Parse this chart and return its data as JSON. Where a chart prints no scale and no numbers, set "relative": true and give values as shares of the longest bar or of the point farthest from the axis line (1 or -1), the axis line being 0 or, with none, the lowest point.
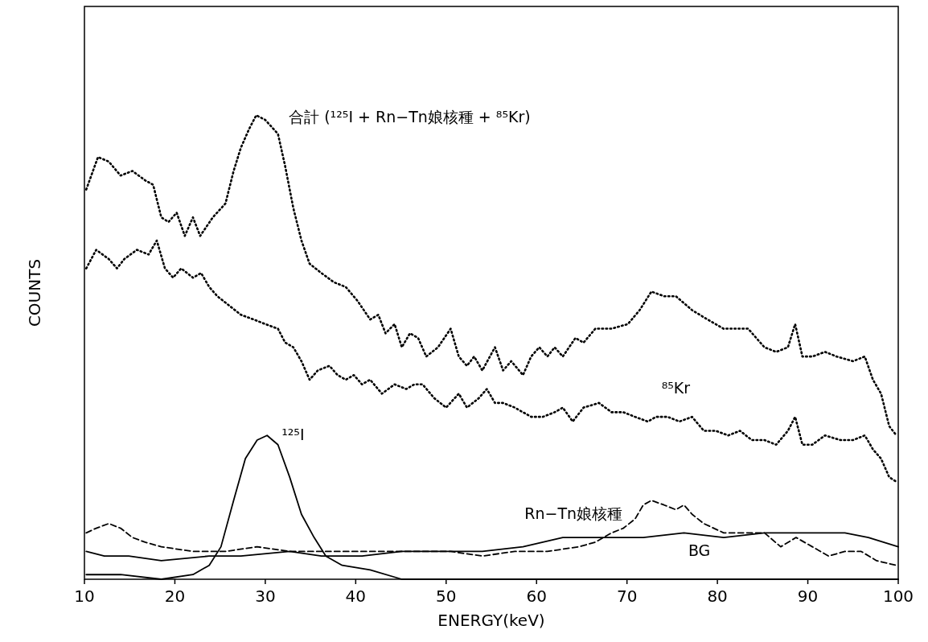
{
  "chart_data": {
    "type": "line",
    "relative": true,
    "xlabel": "ENERGY(keV)",
    "ylabel": "COUNTS",
    "xlim": [
      10,
      100
    ],
    "xticks": [
      10,
      20,
      30,
      40,
      50,
      60,
      70,
      80,
      90,
      100
    ],
    "grid": false,
    "legend": false,
    "series": [
      {
        "name": "合計 (¹²⁵I + Rn−Tn娘核種 + ⁸⁵Kr)",
        "color": "#000000",
        "line_style": "dotted",
        "x": [
          10.2,
          11.5,
          12.7,
          14.0,
          15.3,
          16.7,
          17.6,
          18.5,
          19.3,
          20.2,
          21.1,
          22.0,
          22.8,
          24.2,
          25.6,
          26.5,
          27.3,
          28.2,
          29.0,
          30.0,
          31.4,
          32.2,
          33.1,
          34.0,
          34.9,
          36.2,
          37.6,
          38.9,
          40.2,
          41.6,
          42.5,
          43.3,
          44.3,
          45.1,
          46.0,
          46.9,
          47.8,
          49.1,
          50.5,
          51.4,
          52.3,
          53.1,
          54.0,
          55.4,
          56.3,
          57.2,
          58.5,
          59.4,
          60.3,
          61.2,
          62.0,
          62.9,
          64.3,
          65.2,
          66.5,
          68.3,
          70.1,
          71.4,
          72.7,
          74.1,
          75.4,
          77.2,
          78.9,
          80.7,
          82.1,
          83.4,
          84.3,
          85.2,
          86.5,
          87.8,
          88.6,
          89.4,
          90.5,
          91.9,
          93.2,
          95.0,
          96.3,
          97.2,
          98.1,
          99.0,
          99.8
        ],
        "values": [
          0.84,
          0.91,
          0.9,
          0.87,
          0.88,
          0.86,
          0.85,
          0.78,
          0.77,
          0.79,
          0.74,
          0.78,
          0.74,
          0.78,
          0.81,
          0.88,
          0.93,
          0.97,
          1,
          0.99,
          0.96,
          0.89,
          0.8,
          0.73,
          0.68,
          0.66,
          0.64,
          0.63,
          0.6,
          0.56,
          0.57,
          0.53,
          0.55,
          0.5,
          0.53,
          0.52,
          0.48,
          0.5,
          0.54,
          0.48,
          0.46,
          0.48,
          0.45,
          0.5,
          0.45,
          0.47,
          0.44,
          0.48,
          0.5,
          0.48,
          0.5,
          0.48,
          0.52,
          0.51,
          0.54,
          0.54,
          0.55,
          0.58,
          0.62,
          0.61,
          0.61,
          0.58,
          0.56,
          0.54,
          0.54,
          0.54,
          0.52,
          0.5,
          0.49,
          0.5,
          0.55,
          0.48,
          0.48,
          0.49,
          0.48,
          0.47,
          0.48,
          0.43,
          0.4,
          0.33,
          0.31
        ]
      },
      {
        "name": "⁸⁵Kr",
        "color": "#000000",
        "line_style": "dotted",
        "x": [
          10.2,
          11.3,
          12.7,
          13.6,
          14.4,
          15.8,
          17.1,
          18.0,
          18.9,
          19.8,
          20.7,
          22.0,
          22.9,
          23.8,
          24.7,
          26.0,
          27.3,
          28.7,
          30.0,
          31.4,
          32.2,
          33.1,
          34.0,
          34.9,
          35.8,
          37.1,
          38.0,
          38.9,
          39.8,
          40.7,
          41.6,
          42.9,
          44.3,
          45.6,
          46.5,
          47.4,
          48.7,
          50.0,
          51.4,
          52.3,
          53.6,
          54.5,
          55.4,
          56.3,
          57.6,
          59.4,
          60.7,
          62.0,
          62.9,
          64.0,
          65.2,
          66.9,
          68.3,
          69.6,
          70.9,
          72.3,
          73.2,
          74.5,
          75.8,
          77.2,
          78.5,
          79.8,
          81.2,
          82.5,
          83.8,
          85.2,
          86.5,
          87.8,
          88.6,
          89.4,
          90.5,
          91.9,
          93.6,
          95.0,
          96.3,
          97.2,
          98.1,
          99.0,
          99.8
        ],
        "values": [
          0.67,
          0.71,
          0.69,
          0.67,
          0.69,
          0.71,
          0.7,
          0.73,
          0.67,
          0.65,
          0.67,
          0.65,
          0.66,
          0.63,
          0.61,
          0.59,
          0.57,
          0.56,
          0.55,
          0.54,
          0.51,
          0.5,
          0.47,
          0.43,
          0.45,
          0.46,
          0.44,
          0.43,
          0.44,
          0.42,
          0.43,
          0.4,
          0.42,
          0.41,
          0.42,
          0.42,
          0.39,
          0.37,
          0.4,
          0.37,
          0.39,
          0.41,
          0.38,
          0.38,
          0.37,
          0.35,
          0.35,
          0.36,
          0.37,
          0.34,
          0.37,
          0.38,
          0.36,
          0.36,
          0.35,
          0.34,
          0.35,
          0.35,
          0.34,
          0.35,
          0.32,
          0.32,
          0.31,
          0.32,
          0.3,
          0.3,
          0.29,
          0.32,
          0.35,
          0.29,
          0.29,
          0.31,
          0.3,
          0.3,
          0.31,
          0.28,
          0.26,
          0.22,
          0.21
        ]
      },
      {
        "name": "¹²⁵I",
        "color": "#000000",
        "line_style": "solid",
        "x": [
          10.2,
          14.0,
          18.5,
          22.0,
          23.8,
          25.1,
          26.5,
          27.8,
          29.1,
          30.2,
          31.4,
          32.7,
          34.0,
          35.4,
          36.7,
          38.5,
          41.6,
          45.1,
          49.6,
          58.5,
          71.8,
          89.6,
          100.0
        ],
        "values": [
          0.01,
          0.01,
          0.0,
          0.01,
          0.03,
          0.07,
          0.17,
          0.26,
          0.3,
          0.31,
          0.29,
          0.22,
          0.14,
          0.09,
          0.05,
          0.03,
          0.02,
          0.0,
          0.0,
          0.0,
          0.0,
          0.0,
          0.0
        ]
      },
      {
        "name": "Rn−Tn娘核種",
        "color": "#000000",
        "line_style": "dashed",
        "x": [
          10.2,
          11.3,
          12.7,
          14.0,
          15.3,
          16.7,
          18.5,
          22.0,
          25.6,
          29.1,
          32.7,
          36.2,
          39.8,
          43.3,
          46.9,
          50.5,
          54.0,
          57.6,
          61.2,
          64.7,
          66.5,
          68.3,
          69.6,
          70.9,
          71.8,
          72.7,
          74.1,
          75.4,
          76.3,
          77.2,
          78.5,
          80.7,
          83.4,
          85.2,
          87.0,
          88.7,
          90.5,
          92.3,
          94.1,
          95.9,
          97.6,
          99.8
        ],
        "values": [
          0.1,
          0.11,
          0.12,
          0.11,
          0.09,
          0.08,
          0.07,
          0.06,
          0.06,
          0.07,
          0.06,
          0.06,
          0.06,
          0.06,
          0.06,
          0.06,
          0.05,
          0.06,
          0.06,
          0.07,
          0.08,
          0.1,
          0.11,
          0.13,
          0.16,
          0.17,
          0.16,
          0.15,
          0.16,
          0.14,
          0.12,
          0.1,
          0.1,
          0.1,
          0.07,
          0.09,
          0.07,
          0.05,
          0.06,
          0.06,
          0.04,
          0.03
        ]
      },
      {
        "name": "BG",
        "color": "#000000",
        "line_style": "solid",
        "x": [
          10.2,
          12.2,
          14.9,
          18.5,
          23.8,
          27.3,
          32.7,
          36.2,
          40.7,
          45.1,
          50.5,
          54.0,
          58.5,
          62.9,
          67.4,
          71.8,
          76.3,
          80.7,
          85.2,
          89.6,
          94.1,
          96.7,
          100.0
        ],
        "values": [
          0.06,
          0.05,
          0.05,
          0.04,
          0.05,
          0.05,
          0.06,
          0.05,
          0.05,
          0.06,
          0.06,
          0.06,
          0.07,
          0.09,
          0.09,
          0.09,
          0.1,
          0.09,
          0.1,
          0.1,
          0.1,
          0.09,
          0.07
        ]
      }
    ]
  }
}
